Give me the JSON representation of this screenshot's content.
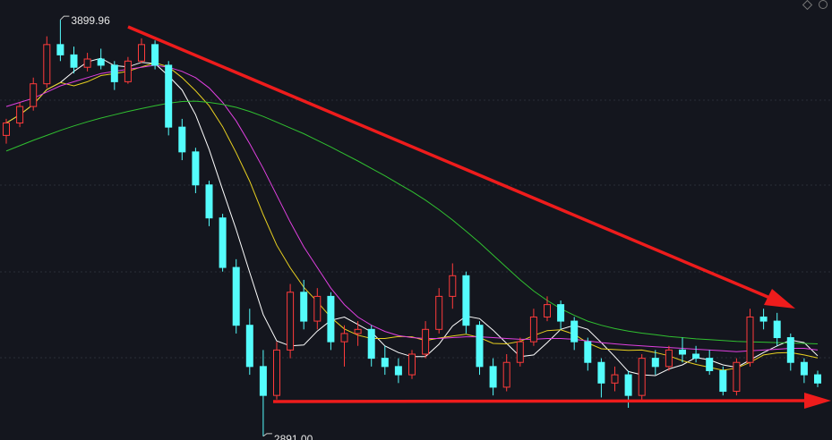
{
  "chart_data": {
    "type": "candlestick",
    "up_color": "#ff3b3b",
    "down_color": "#54fcfc",
    "ylim": [
      2882,
      3948
    ],
    "open": [
      3620,
      3650,
      3690,
      3745,
      3840,
      3815,
      3785,
      3805,
      3790,
      3750,
      3800,
      3840,
      3790,
      3640,
      3580,
      3500,
      3420,
      3300,
      3160,
      3060,
      2990,
      3100,
      3240,
      3170,
      3230,
      3120,
      3140,
      3150,
      3080,
      3060,
      3040,
      3090,
      3150,
      3230,
      3280,
      3160,
      3060,
      3010,
      3070,
      3120,
      3180,
      3210,
      3170,
      3120,
      3070,
      3020,
      3040,
      2990,
      3080,
      3060,
      3100,
      3090,
      3080,
      3050,
      3000,
      3070,
      3180,
      3170,
      3130,
      3070,
      3040
    ],
    "high": [
      3660,
      3700,
      3760,
      3860,
      3899.96,
      3835,
      3820,
      3830,
      3800,
      3810,
      3855,
      3850,
      3800,
      3660,
      3590,
      3510,
      3430,
      3320,
      3200,
      3100,
      3120,
      3260,
      3270,
      3250,
      3240,
      3160,
      3170,
      3160,
      3110,
      3080,
      3100,
      3170,
      3250,
      3310,
      3290,
      3170,
      3080,
      3090,
      3130,
      3200,
      3230,
      3220,
      3180,
      3130,
      3080,
      3060,
      3050,
      3090,
      3100,
      3110,
      3130,
      3110,
      3100,
      3060,
      3080,
      3200,
      3200,
      3190,
      3140,
      3080,
      3050
    ],
    "low": [
      3600,
      3640,
      3680,
      3735,
      3800,
      3770,
      3775,
      3780,
      3730,
      3745,
      3795,
      3780,
      3620,
      3560,
      3480,
      3400,
      3290,
      3140,
      3040,
      2891.0,
      2980,
      3080,
      3150,
      3150,
      3100,
      3060,
      3110,
      3060,
      3040,
      3020,
      3030,
      3080,
      3140,
      3200,
      3140,
      3040,
      2990,
      3000,
      3060,
      3110,
      3170,
      3150,
      3100,
      3050,
      2985,
      3000,
      2960,
      2980,
      3040,
      3050,
      3070,
      3070,
      3040,
      2990,
      2990,
      3060,
      3150,
      3110,
      3050,
      3020,
      3010
    ],
    "close": [
      3650,
      3690,
      3745,
      3840,
      3815,
      3785,
      3805,
      3790,
      3750,
      3800,
      3840,
      3790,
      3640,
      3580,
      3500,
      3420,
      3300,
      3160,
      3060,
      2990,
      3100,
      3240,
      3170,
      3230,
      3120,
      3140,
      3150,
      3080,
      3060,
      3040,
      3090,
      3150,
      3230,
      3280,
      3160,
      3060,
      3010,
      3070,
      3120,
      3180,
      3210,
      3170,
      3120,
      3070,
      3020,
      3040,
      2990,
      3080,
      3060,
      3100,
      3090,
      3080,
      3050,
      3000,
      3070,
      3180,
      3170,
      3130,
      3070,
      3040,
      3020
    ],
    "series": [
      {
        "color": "#ffffff",
        "values": [
          3650,
          3670,
          3695,
          3731,
          3748,
          3775,
          3798,
          3807,
          3789,
          3786,
          3797,
          3794,
          3764,
          3730,
          3670,
          3586,
          3488,
          3392,
          3288,
          3186,
          3122,
          3110,
          3112,
          3146,
          3172,
          3180,
          3162,
          3144,
          3110,
          3094,
          3084,
          3084,
          3114,
          3158,
          3182,
          3176,
          3148,
          3116,
          3084,
          3088,
          3118,
          3150,
          3160,
          3150,
          3118,
          3084,
          3048,
          3040,
          3038,
          3054,
          3064,
          3082,
          3076,
          3064,
          3058,
          3076,
          3094,
          3110,
          3124,
          3118,
          3086
        ]
      },
      {
        "color": "#e8d020",
        "values": [
          3650,
          3670,
          3695,
          3731,
          3748,
          3740,
          3750,
          3765,
          3770,
          3775,
          3786,
          3796,
          3786,
          3760,
          3728,
          3692,
          3641,
          3578,
          3509,
          3428,
          3354,
          3299,
          3252,
          3217,
          3179,
          3151,
          3136,
          3128,
          3128,
          3133,
          3132,
          3123,
          3129,
          3134,
          3138,
          3130,
          3116,
          3115,
          3121,
          3135,
          3147,
          3149,
          3138,
          3117,
          3103,
          3101,
          3099,
          3100,
          3094,
          3086,
          3074,
          3065,
          3058,
          3051,
          3056,
          3070,
          3088,
          3093,
          3094,
          3088,
          3081
        ]
      },
      {
        "color": "#e040e0",
        "values": [
          3690,
          3700,
          3710,
          3725,
          3740,
          3750,
          3760,
          3770,
          3775,
          3780,
          3785,
          3790,
          3785,
          3775,
          3760,
          3735,
          3700,
          3655,
          3600,
          3540,
          3475,
          3410,
          3350,
          3300,
          3250,
          3210,
          3180,
          3160,
          3145,
          3135,
          3130,
          3128,
          3128,
          3130,
          3132,
          3132,
          3130,
          3128,
          3126,
          3126,
          3128,
          3128,
          3126,
          3122,
          3118,
          3115,
          3112,
          3110,
          3108,
          3106,
          3104,
          3102,
          3100,
          3098,
          3096,
          3098,
          3100,
          3102,
          3104,
          3104,
          3100
        ]
      },
      {
        "color": "#30c030",
        "values": [
          3582,
          3595,
          3608,
          3620,
          3632,
          3643,
          3653,
          3662,
          3670,
          3678,
          3685,
          3692,
          3698,
          3702,
          3703,
          3700,
          3695,
          3688,
          3678,
          3666,
          3652,
          3638,
          3624,
          3608,
          3592,
          3575,
          3558,
          3540,
          3522,
          3503,
          3484,
          3463,
          3440,
          3415,
          3388,
          3360,
          3330,
          3300,
          3270,
          3243,
          3220,
          3200,
          3184,
          3170,
          3160,
          3152,
          3146,
          3141,
          3137,
          3133,
          3130,
          3127,
          3125,
          3123,
          3121,
          3120,
          3119,
          3118,
          3117,
          3116,
          3115
        ]
      }
    ],
    "annotations": [
      {
        "value": 3899.96,
        "label": "3899.96"
      },
      {
        "value": 2891.0,
        "label": "2891.00"
      }
    ]
  }
}
